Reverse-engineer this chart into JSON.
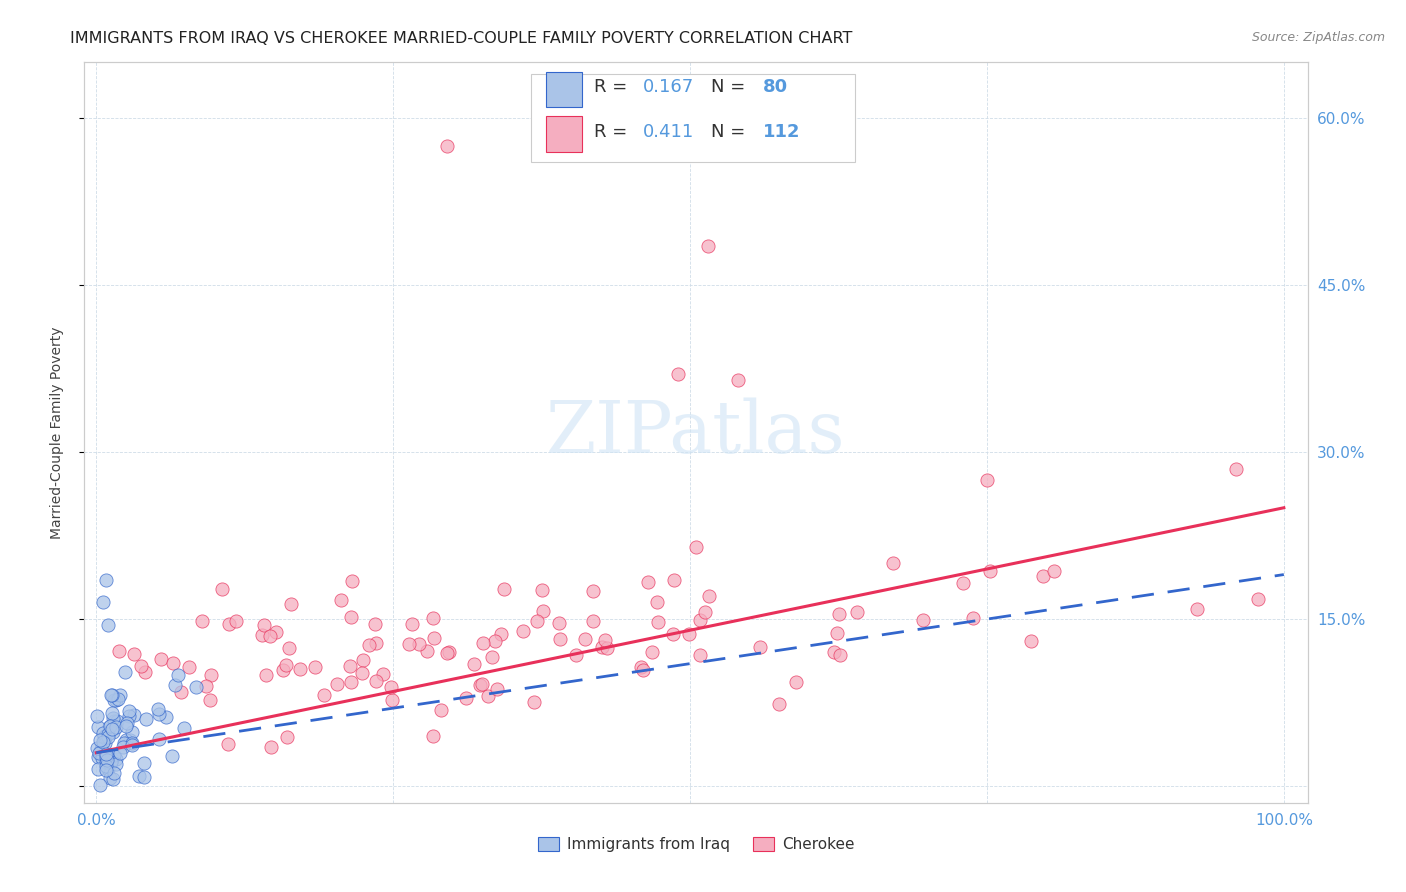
{
  "title": "IMMIGRANTS FROM IRAQ VS CHEROKEE MARRIED-COUPLE FAMILY POVERTY CORRELATION CHART",
  "source": "Source: ZipAtlas.com",
  "ylabel": "Married-Couple Family Poverty",
  "series1_label": "Immigrants from Iraq",
  "series2_label": "Cherokee",
  "series1_R": 0.167,
  "series1_N": 80,
  "series2_R": 0.411,
  "series2_N": 112,
  "color1": "#aac4e8",
  "color2": "#f5aec0",
  "line1_color": "#3366cc",
  "line2_color": "#e8305a",
  "background_color": "#ffffff",
  "tick_color": "#5599dd",
  "title_color": "#222222",
  "ylabel_color": "#444444",
  "source_color": "#888888",
  "watermark_color": "#d0e4f5",
  "grid_color": "#d0dde8",
  "legend_edge_color": "#cccccc",
  "title_fontsize": 11.5,
  "tick_fontsize": 11,
  "legend_fontsize": 13,
  "ylabel_fontsize": 10,
  "source_fontsize": 9,
  "watermark_fontsize": 52
}
